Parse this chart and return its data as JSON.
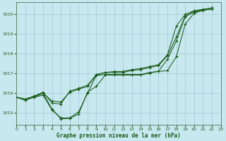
{
  "title": "Graphe pression niveau de la mer (hPa)",
  "bg_color": "#c8e8f0",
  "grid_color": "#a0c8d4",
  "line_color": "#1a5c1a",
  "xlim": [
    0,
    23
  ],
  "ylim": [
    1014.4,
    1020.6
  ],
  "yticks": [
    1015,
    1016,
    1017,
    1018,
    1019,
    1020
  ],
  "xticks": [
    0,
    1,
    2,
    3,
    4,
    5,
    6,
    7,
    8,
    9,
    10,
    11,
    12,
    13,
    14,
    15,
    16,
    17,
    18,
    19,
    20,
    21,
    22,
    23
  ],
  "s1": [
    1015.8,
    1015.65,
    1015.8,
    1015.9,
    1015.15,
    1014.75,
    1014.75,
    1015.05,
    1016.0,
    1016.9,
    1016.95,
    1016.95,
    1016.95,
    1016.95,
    1016.95,
    1017.05,
    1017.1,
    1017.15,
    1017.85,
    1019.5,
    1020.05,
    1020.2,
    1020.25
  ],
  "s2": [
    1015.8,
    1015.65,
    1015.8,
    1016.0,
    1015.2,
    1014.7,
    1014.72,
    1014.95,
    1016.05,
    1016.35,
    1016.92,
    1016.92,
    1016.92,
    1016.92,
    1016.92,
    1017.02,
    1017.12,
    1017.72,
    1018.65,
    1019.88,
    1020.12,
    1020.22,
    1020.32
  ],
  "s3": [
    1015.8,
    1015.7,
    1015.85,
    1016.0,
    1015.6,
    1015.55,
    1016.05,
    1016.2,
    1016.35,
    1016.92,
    1017.05,
    1017.05,
    1017.05,
    1017.15,
    1017.2,
    1017.3,
    1017.4,
    1017.9,
    1018.85,
    1019.9,
    1020.15,
    1020.22,
    1020.32
  ],
  "s4": [
    1015.8,
    1015.7,
    1015.85,
    1016.05,
    1015.5,
    1015.45,
    1016.1,
    1016.25,
    1016.4,
    1016.95,
    1017.05,
    1017.1,
    1017.1,
    1017.2,
    1017.25,
    1017.35,
    1017.45,
    1017.95,
    1019.4,
    1020.0,
    1020.18,
    1020.25,
    1020.32
  ]
}
